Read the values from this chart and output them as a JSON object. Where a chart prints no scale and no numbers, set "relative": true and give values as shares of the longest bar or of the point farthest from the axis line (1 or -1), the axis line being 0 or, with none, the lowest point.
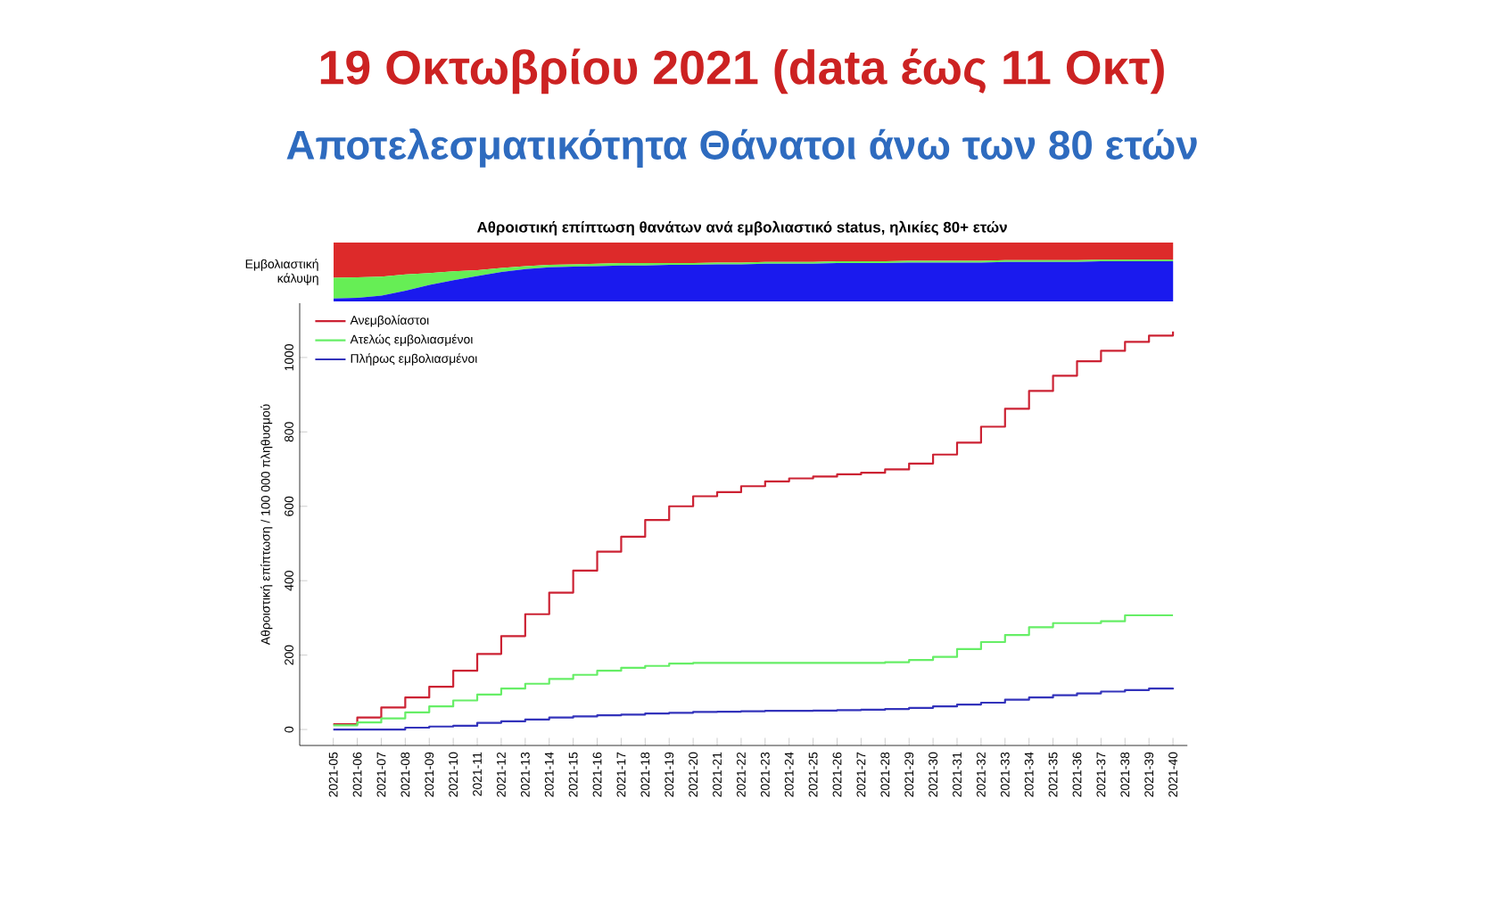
{
  "chart_data": [
    {
      "type": "area",
      "title": "19 Οκτωβρίου 2021 (data έως 11 Οκτ)",
      "subtitle": "Αποτελεσματικότητα Θάνατοι άνω των 80 ετών",
      "annotations": [
        "Αθροιστική επίπτωση θανάτων ανά εμβολιαστικό status, ηλικίες 80+ ετών"
      ],
      "ylabel": "Εμβολιαστική κάλυψη",
      "relative": true,
      "stacked": true,
      "categories": [
        null,
        null,
        null,
        null,
        null,
        null,
        null,
        null,
        null,
        null,
        null,
        null,
        null,
        null,
        null,
        null,
        null,
        null,
        null,
        null,
        null,
        null,
        null,
        null,
        null,
        null,
        null,
        null,
        null,
        null,
        null,
        null,
        null,
        null,
        null,
        null
      ],
      "series": [
        {
          "color": "#1a1aee",
          "values": [
            0.05,
            0.06,
            0.1,
            0.18,
            0.28,
            0.36,
            0.43,
            0.5,
            0.55,
            0.58,
            0.59,
            0.6,
            0.61,
            0.61,
            0.62,
            0.62,
            0.63,
            0.63,
            0.64,
            0.64,
            0.64,
            0.65,
            0.65,
            0.65,
            0.66,
            0.66,
            0.66,
            0.66,
            0.67,
            0.67,
            0.67,
            0.67,
            0.68,
            0.68,
            0.68,
            0.68
          ]
        },
        {
          "color": "#66ee55",
          "values": [
            0.35,
            0.35,
            0.32,
            0.28,
            0.2,
            0.15,
            0.1,
            0.07,
            0.05,
            0.04,
            0.04,
            0.04,
            0.04,
            0.04,
            0.03,
            0.03,
            0.03,
            0.03,
            0.03,
            0.03,
            0.03,
            0.03,
            0.03,
            0.03,
            0.03,
            0.03,
            0.03,
            0.03,
            0.03,
            0.03,
            0.03,
            0.03,
            0.03,
            0.03,
            0.03,
            0.03
          ]
        },
        {
          "color": "#dd2a2a",
          "values": [
            0.6,
            0.59,
            0.58,
            0.54,
            0.52,
            0.49,
            0.47,
            0.43,
            0.4,
            0.38,
            0.37,
            0.36,
            0.35,
            0.35,
            0.35,
            0.35,
            0.34,
            0.34,
            0.33,
            0.33,
            0.33,
            0.32,
            0.32,
            0.32,
            0.31,
            0.31,
            0.31,
            0.31,
            0.3,
            0.3,
            0.3,
            0.3,
            0.29,
            0.29,
            0.29,
            0.29
          ]
        }
      ]
    },
    {
      "type": "step",
      "ylabel": "Αθροιστική επίπτωση / 100 000 πληθυσμού",
      "legend": "top left",
      "categories": [
        "2021-05",
        "2021-06",
        "2021-07",
        "2021-08",
        "2021-09",
        "2021-10",
        "2021-11",
        "2021-12",
        "2021-13",
        "2021-14",
        "2021-15",
        "2021-16",
        "2021-17",
        "2021-18",
        "2021-19",
        "2021-20",
        "2021-21",
        "2021-22",
        "2021-23",
        "2021-24",
        "2021-25",
        "2021-26",
        "2021-27",
        "2021-28",
        "2021-29",
        "2021-30",
        "2021-31",
        "2021-32",
        "2021-33",
        "2021-34",
        "2021-35",
        "2021-36",
        "2021-37",
        "2021-38",
        "2021-39",
        "2021-40"
      ],
      "ylim": [
        -43,
        1146
      ],
      "yticks": [
        0,
        200,
        400,
        600,
        800,
        1000
      ],
      "series": [
        {
          "name": "Ανεμβολίαστοι",
          "color": "#cc2233",
          "values": [
            14,
            32,
            59,
            86,
            115,
            158,
            203,
            251,
            310,
            368,
            427,
            478,
            518,
            563,
            600,
            627,
            638,
            654,
            667,
            675,
            680,
            686,
            690,
            699,
            715,
            739,
            771,
            814,
            862,
            910,
            951,
            990,
            1018,
            1042,
            1059,
            1070
          ]
        },
        {
          "name": "Ατελώς εμβολιασμένοι",
          "color": "#66ee66",
          "values": [
            11,
            19,
            30,
            46,
            62,
            78,
            94,
            110,
            123,
            136,
            147,
            158,
            166,
            171,
            177,
            179,
            179,
            179,
            179,
            179,
            179,
            179,
            179,
            181,
            187,
            195,
            216,
            235,
            254,
            275,
            286,
            286,
            291,
            307,
            307,
            307
          ]
        },
        {
          "name": "Πλήρως εμβολιασμένοι",
          "color": "#3333bb",
          "values": [
            0,
            0,
            0,
            5,
            8,
            10,
            18,
            22,
            27,
            32,
            35,
            38,
            40,
            43,
            45,
            47,
            48,
            49,
            50,
            50,
            51,
            52,
            53,
            55,
            58,
            62,
            67,
            72,
            80,
            86,
            92,
            97,
            102,
            106,
            110,
            112
          ]
        }
      ]
    }
  ]
}
